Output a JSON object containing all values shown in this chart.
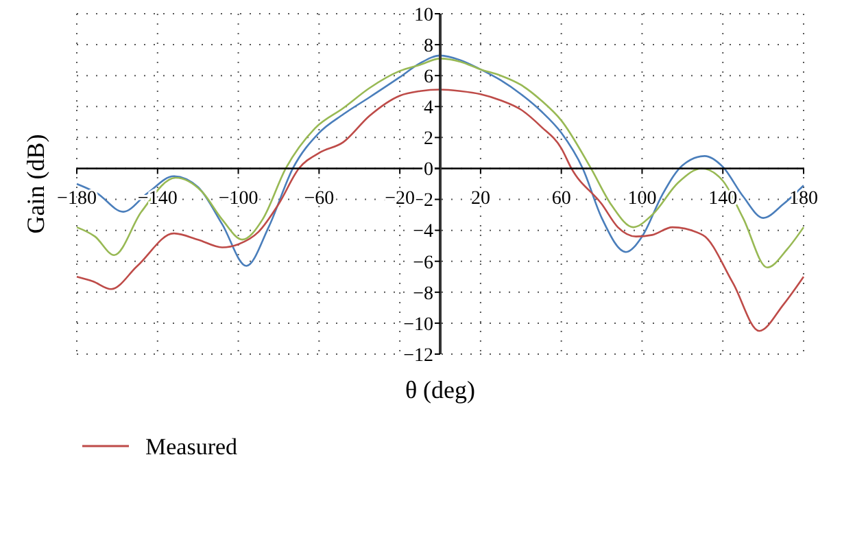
{
  "chart_data": {
    "type": "line",
    "xlabel": "θ (deg)",
    "ylabel": "Gain (dB)",
    "xlim": [
      -180,
      180
    ],
    "ylim": [
      -12,
      10
    ],
    "xticks": [
      {
        "value": -180,
        "label": "−180"
      },
      {
        "value": -140,
        "label": "−140"
      },
      {
        "value": -100,
        "label": "−100"
      },
      {
        "value": -60,
        "label": "−60"
      },
      {
        "value": -20,
        "label": "−20"
      },
      20,
      60,
      100,
      140,
      180
    ],
    "yticks": [
      {
        "value": -12,
        "label": "−12"
      },
      {
        "value": -10,
        "label": "−10"
      },
      {
        "value": -8,
        "label": "−8"
      },
      {
        "value": -6,
        "label": "−6"
      },
      {
        "value": -4,
        "label": "−4"
      },
      {
        "value": -2,
        "label": "−2"
      },
      0,
      2,
      4,
      6,
      8,
      10
    ],
    "grid": true,
    "legend": "bottom left",
    "line_style": "solid",
    "marker": "none",
    "series": [
      {
        "color": "#4a7ebb",
        "x": [
          -180,
          -170,
          -157,
          -145,
          -132,
          -120,
          -108,
          -96,
          -85,
          -73,
          -60,
          -48,
          -35,
          -20,
          -10,
          0,
          10,
          20,
          30,
          40,
          50,
          60,
          70.6,
          80,
          92,
          100,
          110,
          120,
          131,
          140,
          150,
          160,
          170,
          180
        ],
        "values": [
          -1.0,
          -1.6,
          -2.8,
          -1.6,
          -0.5,
          -1.2,
          -3.6,
          -6.3,
          -3.8,
          0,
          2.3,
          3.5,
          4.6,
          5.9,
          6.8,
          7.3,
          7.0,
          6.4,
          5.7,
          4.8,
          3.7,
          2.3,
          0,
          -3.2,
          -5.4,
          -4.4,
          -1.7,
          0.2,
          0.8,
          0.1,
          -1.8,
          -3.2,
          -2.3,
          -1.1
        ]
      },
      {
        "name": "Measured",
        "color": "#be4b48",
        "x": [
          -180,
          -172,
          -163,
          -150,
          -132,
          -120,
          -108,
          -100,
          -90,
          -80,
          -70,
          -60,
          -48,
          -35,
          -20,
          -10,
          0,
          10,
          20,
          30,
          40,
          50,
          60,
          65,
          80,
          88,
          97,
          105,
          115,
          130,
          145,
          158,
          170,
          180
        ],
        "values": [
          -7.0,
          -7.3,
          -7.8,
          -6.3,
          -4.2,
          -4.6,
          -5.1,
          -4.9,
          -4.1,
          -2.3,
          0,
          1.0,
          1.7,
          3.4,
          4.7,
          5.0,
          5.1,
          5.0,
          4.8,
          4.4,
          3.8,
          2.7,
          1.3,
          0,
          -2.3,
          -3.8,
          -4.4,
          -4.3,
          -3.8,
          -4.3,
          -7.4,
          -10.5,
          -8.8,
          -7.0
        ]
      },
      {
        "color": "#98b954",
        "x": [
          -180,
          -171,
          -161.5,
          -148,
          -131,
          -118,
          -108,
          -98,
          -88,
          -76.5,
          -62,
          -48,
          -35,
          -20,
          -10,
          0,
          10,
          20,
          30,
          40,
          50,
          60,
          74.7,
          85,
          95.6,
          105,
          118,
          129.5,
          140,
          150,
          162,
          172,
          180
        ],
        "values": [
          -3.8,
          -4.4,
          -5.6,
          -2.8,
          -0.6,
          -1.5,
          -3.3,
          -4.6,
          -3.3,
          0,
          2.6,
          3.9,
          5.2,
          6.3,
          6.7,
          7.1,
          6.9,
          6.4,
          6.0,
          5.4,
          4.4,
          3.1,
          0,
          -2.4,
          -3.8,
          -3.0,
          -0.9,
          0.0,
          -0.8,
          -3.2,
          -6.4,
          -5.2,
          -3.8
        ]
      }
    ]
  }
}
